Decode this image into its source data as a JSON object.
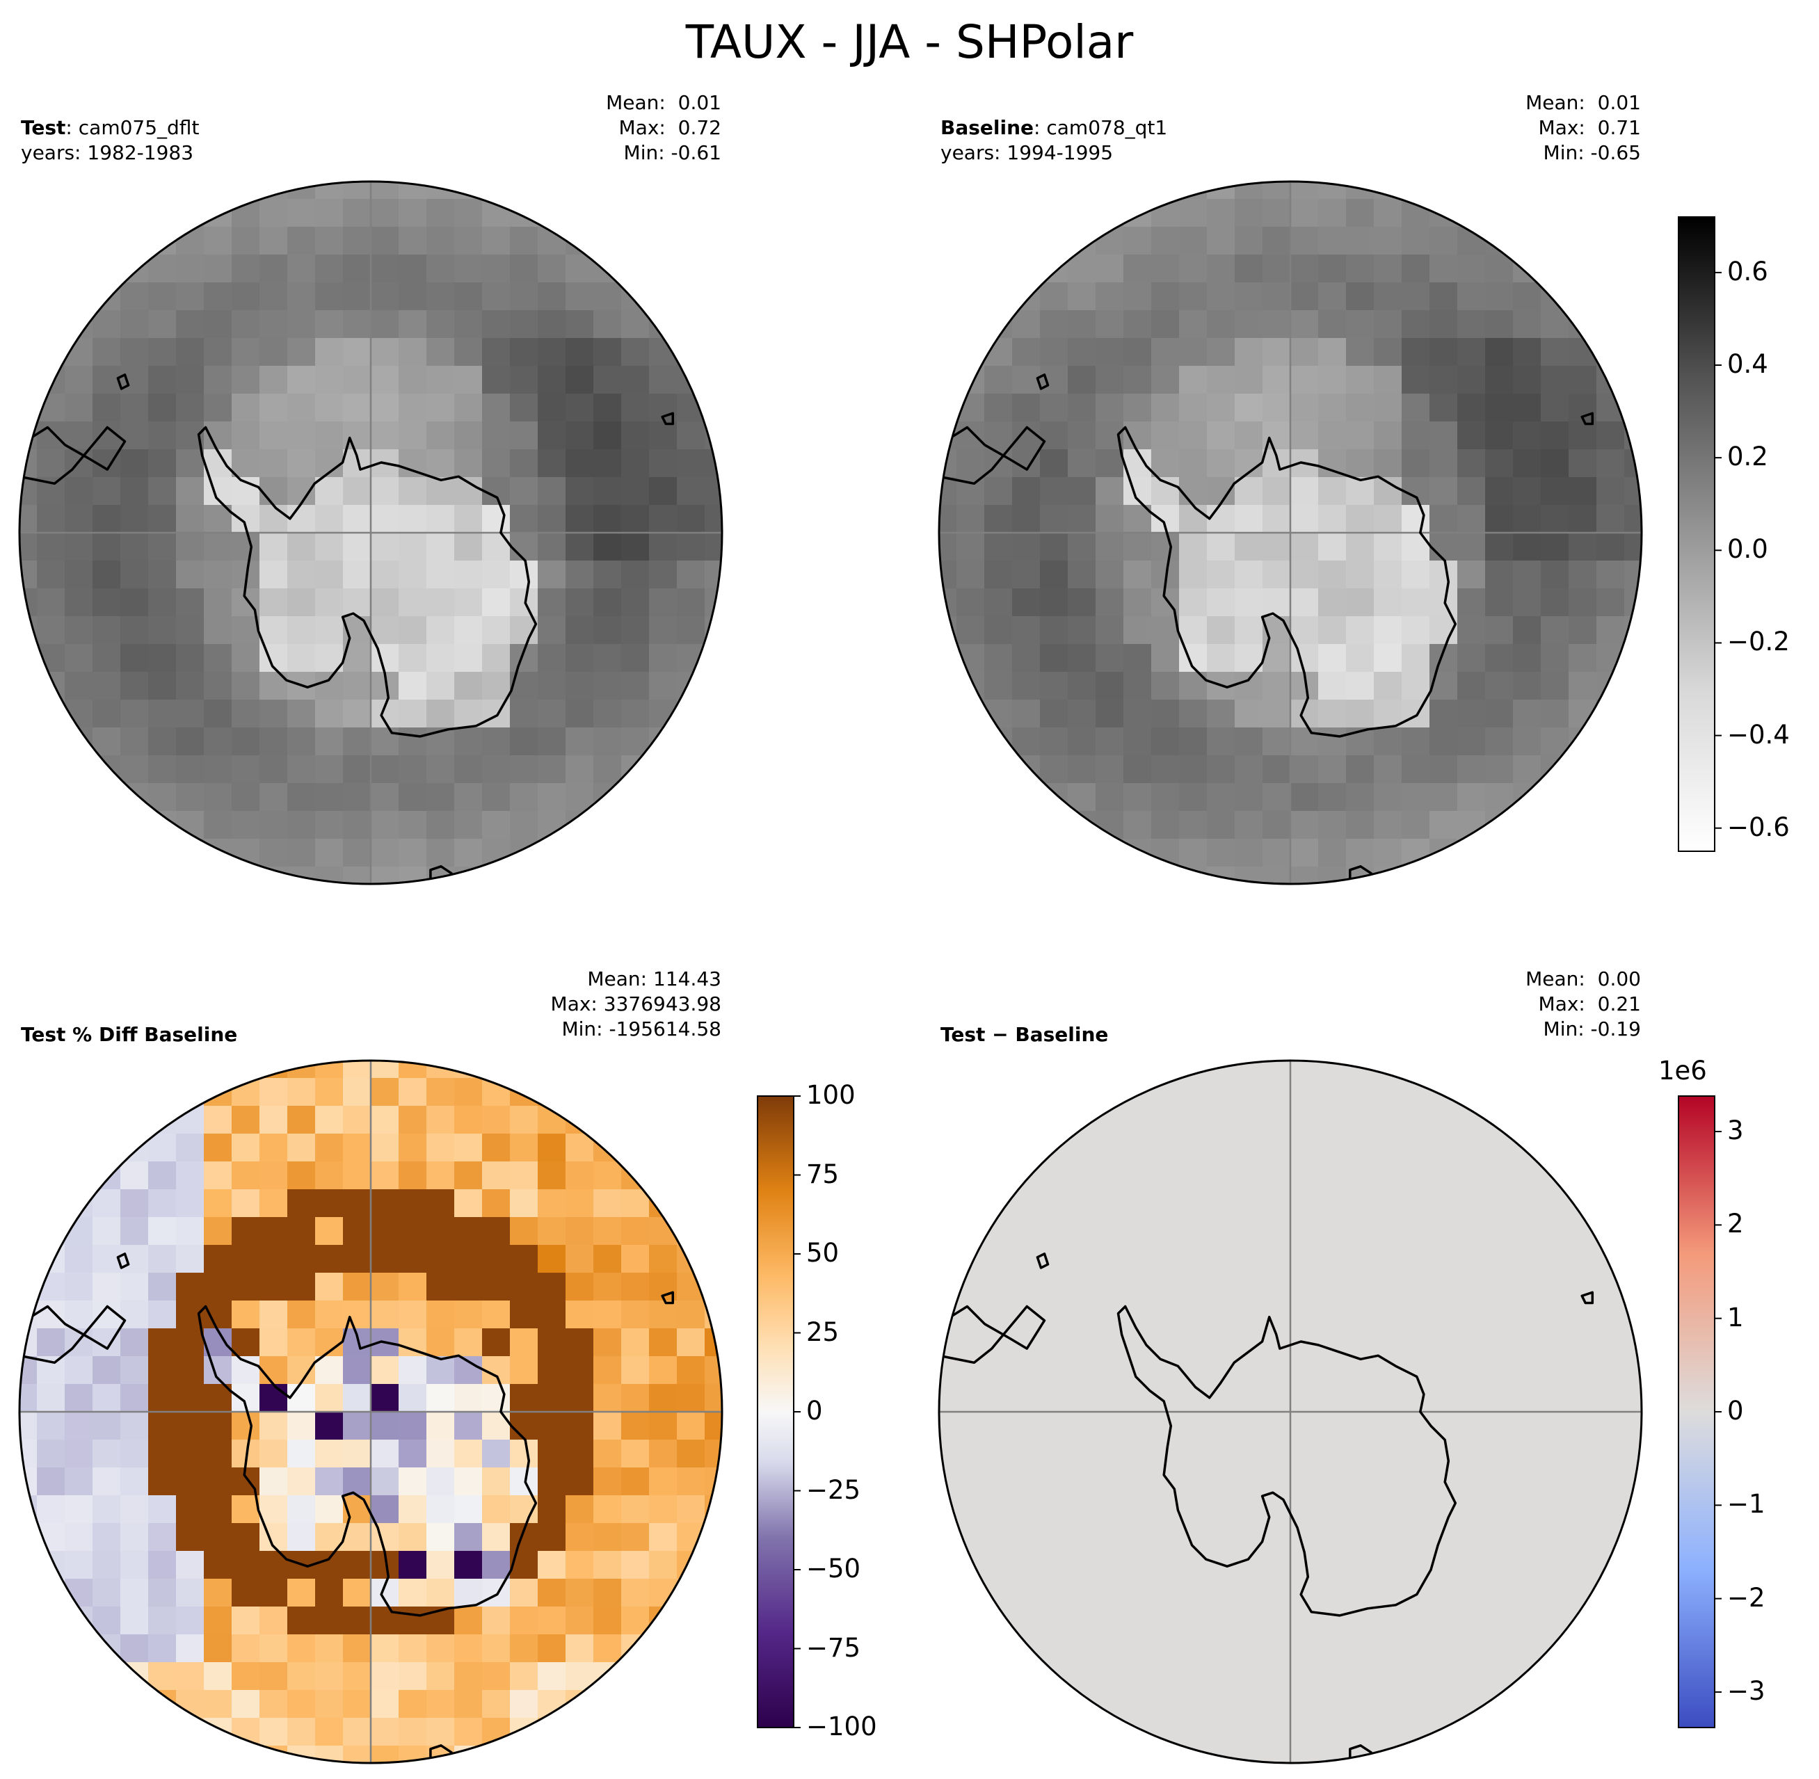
{
  "title": "TAUX - JJA - SHPolar",
  "panels": {
    "test": {
      "label": "Test",
      "case": "cam075_dflt",
      "years": "years: 1982-1983",
      "mean": "Mean:  0.01",
      "max": "Max:  0.72",
      "min": "Min: -0.61"
    },
    "baseline": {
      "label": "Baseline",
      "case": "cam078_qt1",
      "years": "years: 1994-1995",
      "mean": "Mean:  0.01",
      "max": "Max:  0.71",
      "min": "Min: -0.65"
    },
    "pctdiff": {
      "label": "Test % Diff Baseline",
      "mean": "Mean: 114.43",
      "max": "Max: 3376943.98",
      "min": "Min: -195614.58"
    },
    "diff": {
      "label": "Test − Baseline",
      "mean": "Mean:  0.00",
      "max": "Max:  0.21",
      "min": "Min: -0.19"
    }
  },
  "colorbars": {
    "main": {
      "colormap": "Greys",
      "range": [
        -0.65,
        0.72
      ],
      "ticks": [
        "0.6",
        "0.4",
        "0.2",
        "0.0",
        "−0.2",
        "−0.4",
        "−0.6"
      ]
    },
    "pctdiff": {
      "colormap": "PuOr_r",
      "range": [
        -100,
        100
      ],
      "ticks": [
        "100",
        "75",
        "50",
        "25",
        "0",
        "−25",
        "−50",
        "−75",
        "−100"
      ]
    },
    "diff": {
      "colormap": "coolwarm",
      "range": [
        -3.38,
        3.38
      ],
      "multiplier": "1e6",
      "ticks": [
        "3",
        "2",
        "1",
        "0",
        "−1",
        "−2",
        "−3"
      ]
    }
  },
  "colors": {
    "land_outline": "#000000",
    "gridline": "#808080",
    "diff_fill": "#dddcdb",
    "purple_dark": "#2d004b",
    "orange_dark": "#7f3b08"
  }
}
